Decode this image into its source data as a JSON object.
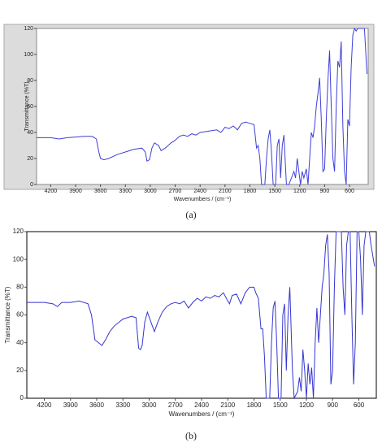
{
  "chart_data": [
    {
      "type": "line",
      "caption": "(a)",
      "xlabel": "Wavenumbers / (cm⁻¹)",
      "ylabel": "Transmittance (%T)",
      "xlim": [
        4370,
        375
      ],
      "ylim": [
        0,
        120
      ],
      "xticks": [
        4200,
        3900,
        3600,
        3300,
        3000,
        2700,
        2400,
        2100,
        1800,
        1500,
        1200,
        900,
        600
      ],
      "yticks": [
        0,
        20,
        40,
        60,
        80,
        100,
        120
      ],
      "x": [
        4370,
        4200,
        4100,
        4000,
        3900,
        3800,
        3700,
        3650,
        3620,
        3600,
        3560,
        3500,
        3400,
        3300,
        3200,
        3100,
        3060,
        3040,
        3010,
        2980,
        2950,
        2900,
        2870,
        2820,
        2750,
        2700,
        2650,
        2600,
        2550,
        2500,
        2450,
        2400,
        2300,
        2200,
        2150,
        2100,
        2050,
        2000,
        1950,
        1900,
        1850,
        1800,
        1750,
        1720,
        1700,
        1680,
        1660,
        1620,
        1600,
        1580,
        1560,
        1540,
        1520,
        1490,
        1470,
        1450,
        1430,
        1410,
        1390,
        1360,
        1330,
        1300,
        1270,
        1250,
        1230,
        1210,
        1190,
        1170,
        1150,
        1120,
        1100,
        1080,
        1060,
        1040,
        1020,
        1000,
        980,
        960,
        940,
        920,
        900,
        880,
        860,
        840,
        820,
        800,
        780,
        760,
        740,
        720,
        700,
        680,
        660,
        640,
        620,
        600,
        580,
        560,
        540,
        520,
        500,
        460,
        420,
        390
      ],
      "series": [
        {
          "color": "#3f3fd8",
          "values": [
            36,
            36,
            35,
            36,
            36.5,
            37,
            37,
            35,
            25,
            20,
            19,
            20,
            23,
            25,
            27,
            28,
            25,
            18,
            19,
            28,
            32,
            30,
            26,
            28,
            32,
            34,
            37,
            38,
            37,
            39,
            38,
            40,
            41,
            42,
            40,
            44,
            43,
            45,
            42,
            47,
            48,
            47,
            46,
            28,
            30,
            20,
            0,
            0,
            20,
            35,
            42,
            25,
            0,
            0,
            30,
            35,
            5,
            30,
            38,
            0,
            0,
            5,
            10,
            5,
            20,
            10,
            0,
            10,
            5,
            12,
            0,
            20,
            40,
            36,
            45,
            60,
            70,
            82,
            50,
            10,
            12,
            50,
            80,
            103,
            60,
            20,
            10,
            60,
            95,
            90,
            110,
            45,
            10,
            0,
            50,
            45,
            90,
            115,
            120,
            118,
            120,
            120,
            120,
            85
          ]
        }
      ]
    },
    {
      "type": "line",
      "caption": "(b)",
      "xlabel": "Wavenumbers / (cm⁻¹)",
      "ylabel": "Transmittance (%T)",
      "xlim": [
        4400,
        400
      ],
      "ylim": [
        0,
        120
      ],
      "xticks": [
        4200,
        3900,
        3600,
        3300,
        3000,
        2700,
        2400,
        2100,
        1800,
        1500,
        1200,
        900,
        600
      ],
      "yticks": [
        0,
        20,
        40,
        60,
        80,
        100,
        120
      ],
      "x": [
        4400,
        4200,
        4100,
        4050,
        4000,
        3900,
        3800,
        3700,
        3660,
        3620,
        3580,
        3540,
        3500,
        3450,
        3400,
        3300,
        3200,
        3150,
        3120,
        3100,
        3080,
        3050,
        3020,
        2980,
        2940,
        2900,
        2850,
        2800,
        2750,
        2700,
        2650,
        2600,
        2550,
        2500,
        2450,
        2400,
        2350,
        2300,
        2250,
        2200,
        2150,
        2100,
        2080,
        2050,
        2000,
        1950,
        1900,
        1850,
        1800,
        1780,
        1750,
        1720,
        1700,
        1680,
        1660,
        1620,
        1600,
        1580,
        1560,
        1540,
        1520,
        1490,
        1470,
        1450,
        1430,
        1410,
        1390,
        1360,
        1340,
        1300,
        1280,
        1260,
        1240,
        1220,
        1200,
        1180,
        1160,
        1140,
        1120,
        1100,
        1080,
        1060,
        1040,
        1020,
        1000,
        980,
        960,
        940,
        920,
        900,
        880,
        860,
        840,
        800,
        780,
        760,
        740,
        720,
        700,
        680,
        660,
        640,
        620,
        600,
        580,
        560,
        540,
        520,
        500,
        480,
        460,
        420
      ],
      "series": [
        {
          "color": "#3535d0",
          "values": [
            69,
            69,
            68,
            66,
            69,
            69,
            70,
            68,
            60,
            42,
            40,
            38,
            42,
            48,
            52,
            57,
            59,
            58,
            36,
            35,
            38,
            55,
            62,
            55,
            48,
            55,
            62,
            66,
            68,
            69,
            68,
            70,
            65,
            69,
            72,
            70,
            73,
            72,
            74,
            73,
            76,
            70,
            68,
            74,
            75,
            68,
            76,
            80,
            80,
            76,
            72,
            50,
            50,
            30,
            0,
            0,
            40,
            65,
            70,
            40,
            0,
            0,
            60,
            68,
            20,
            60,
            80,
            20,
            0,
            5,
            15,
            5,
            35,
            20,
            0,
            25,
            10,
            22,
            0,
            40,
            65,
            40,
            60,
            80,
            90,
            110,
            118,
            90,
            10,
            20,
            80,
            120,
            120,
            120,
            80,
            60,
            110,
            120,
            120,
            60,
            10,
            40,
            120,
            120,
            100,
            60,
            110,
            120,
            120,
            120,
            110,
            95
          ]
        }
      ]
    }
  ]
}
